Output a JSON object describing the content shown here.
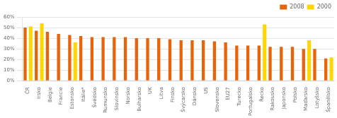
{
  "chart_data": {
    "type": "bar",
    "categories": [
      "ČR",
      "Irsko",
      "Belgie",
      "Francie",
      "Estonsko",
      "Itálie*",
      "Švédsko",
      "Rumunsko",
      "Slovinsko",
      "Norsko",
      "Bulharsko",
      "UK",
      "Litva",
      "Finsko",
      "Švýcarsko",
      "Dánsko",
      "US",
      "Slovensko",
      "EU27",
      "Turecko",
      "Portugalsko",
      "Řecko",
      "Rakousko",
      "Japonsko",
      "Polsko",
      "Maďarsko",
      "Lotyšsko",
      "Španělsko"
    ],
    "series": [
      {
        "name": "2008",
        "color": "#E8640A",
        "values": [
          50,
          47,
          46,
          44,
          43,
          42,
          41,
          41,
          41,
          41,
          40,
          40,
          40,
          39,
          38,
          38,
          38,
          37,
          36,
          33,
          33,
          33,
          32,
          32,
          32,
          30,
          30,
          21
        ]
      },
      {
        "name": "2000",
        "color": "#FFD700",
        "values": [
          51,
          54,
          null,
          null,
          36,
          null,
          null,
          null,
          null,
          null,
          null,
          null,
          null,
          null,
          null,
          null,
          null,
          null,
          null,
          null,
          null,
          53,
          null,
          null,
          null,
          38,
          null,
          22
        ]
      }
    ],
    "ylim": [
      0,
      60
    ],
    "yticks": [
      {
        "value": 0,
        "label": "0%"
      },
      {
        "value": 10,
        "label": "10%"
      },
      {
        "value": 20,
        "label": "20%"
      },
      {
        "value": 30,
        "label": "30%"
      },
      {
        "value": 40,
        "label": "40%"
      },
      {
        "value": 50,
        "label": "50%"
      },
      {
        "value": 60,
        "label": "60%"
      }
    ],
    "grid": true,
    "legend": "upper right"
  }
}
